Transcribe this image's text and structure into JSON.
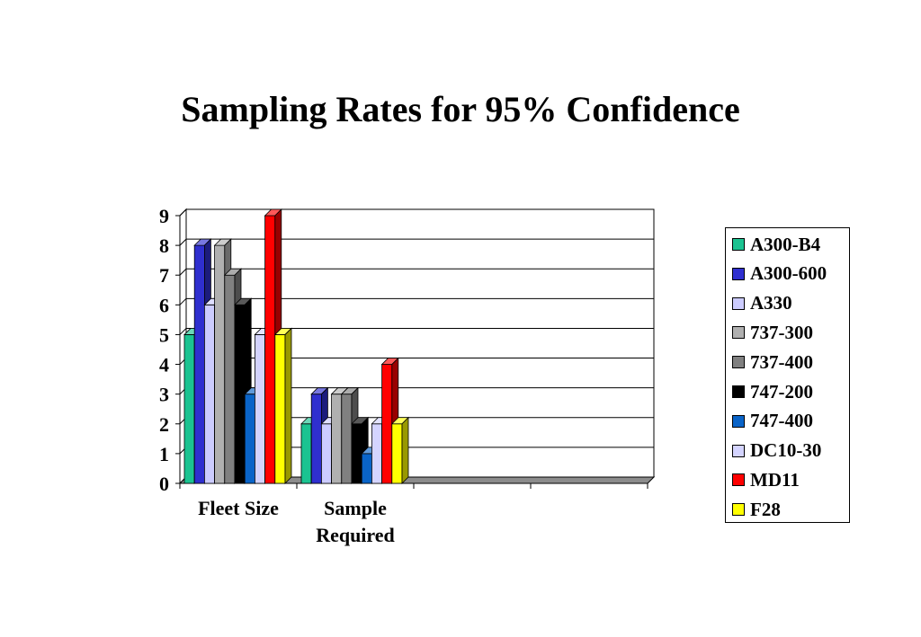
{
  "chart_data": {
    "type": "bar",
    "title": "Sampling Rates for 95% Confidence",
    "categories": [
      "Fleet Size",
      "Sample Required"
    ],
    "category_lines": [
      [
        "Fleet Size"
      ],
      [
        "Sample",
        "Required"
      ]
    ],
    "ylim": [
      0,
      9
    ],
    "yticks": [
      "0",
      "1",
      "2",
      "3",
      "4",
      "5",
      "6",
      "7",
      "8",
      "9"
    ],
    "grid": true,
    "legend_position": "right",
    "series": [
      {
        "name": "A300-B4",
        "color": "#1bc391",
        "values": [
          5,
          2
        ]
      },
      {
        "name": "A300-600",
        "color": "#2f2fcf",
        "values": [
          8,
          3
        ]
      },
      {
        "name": "A330",
        "color": "#ccccff",
        "values": [
          6,
          2
        ]
      },
      {
        "name": "737-300",
        "color": "#b0b0b0",
        "values": [
          8,
          3
        ]
      },
      {
        "name": "737-400",
        "color": "#808080",
        "values": [
          7,
          3
        ]
      },
      {
        "name": "747-200",
        "color": "#000000",
        "values": [
          6,
          2
        ]
      },
      {
        "name": "747-400",
        "color": "#0a64c8",
        "values": [
          3,
          1
        ]
      },
      {
        "name": "DC10-30",
        "color": "#d4d4ff",
        "values": [
          5,
          2
        ]
      },
      {
        "name": "MD11",
        "color": "#ff0000",
        "values": [
          9,
          4
        ]
      },
      {
        "name": "F28",
        "color": "#ffff00",
        "values": [
          5,
          2
        ]
      }
    ]
  }
}
